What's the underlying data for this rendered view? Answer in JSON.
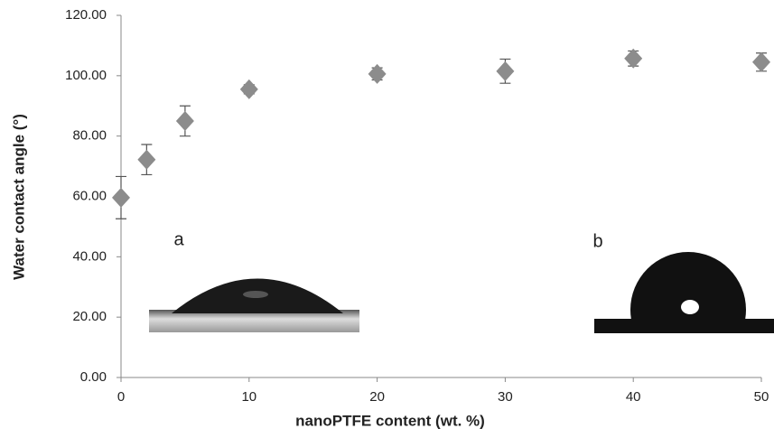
{
  "chart_data": {
    "type": "scatter",
    "xlabel": "nanoPTFE content (wt. %)",
    "ylabel": "Water contact angle (°)",
    "annotations": [
      "a",
      "b"
    ],
    "x": [
      0,
      2,
      5,
      10,
      20,
      30,
      40,
      50
    ],
    "series": [
      {
        "name": "Water contact angle",
        "color": "#8c8c8c",
        "values": [
          59.6,
          72.2,
          85,
          95.5,
          100.6,
          101.5,
          105.7,
          104.5
        ],
        "errors": [
          7,
          5,
          5,
          1.5,
          2,
          4,
          2.5,
          3
        ]
      }
    ],
    "xlim": [
      0,
      50
    ],
    "xticks": [
      0,
      10,
      20,
      30,
      40,
      50
    ],
    "ylim": [
      0,
      120
    ],
    "yticks": [
      {
        "value": 0,
        "label": "0.00"
      },
      {
        "value": 20,
        "label": "20.00"
      },
      {
        "value": 40,
        "label": "40.00"
      },
      {
        "value": 60,
        "label": "60.00"
      },
      {
        "value": 80,
        "label": "80.00"
      },
      {
        "value": 100,
        "label": "100.00"
      },
      {
        "value": 120,
        "label": "120.00"
      }
    ]
  }
}
